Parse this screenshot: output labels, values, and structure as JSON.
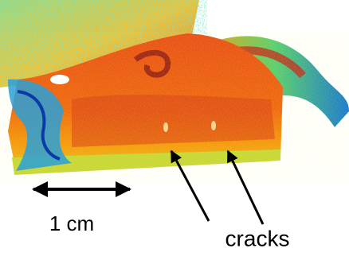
{
  "annotations": {
    "scale_label": "1 cm",
    "crack_label": "cracks"
  }
}
